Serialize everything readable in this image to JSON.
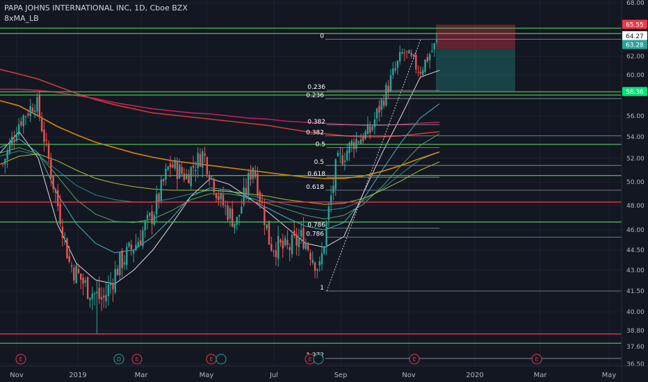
{
  "header": {
    "symbol_line": "PAPA JOHNS INTERNATIONAL INC, 1D, Cboe BZX",
    "indicator_name": "8xMA_LB"
  },
  "colors": {
    "background": "#131722",
    "grid": "#1e222d",
    "text": "#b2b5be",
    "candle_up": "#26a69a",
    "candle_down": "#ef5350",
    "green_line": "#4caf50",
    "red_line": "#f23645",
    "white_line": "#d1d4dc"
  },
  "chart_data": {
    "type": "candlestick",
    "x_axis": {
      "ticks": [
        "Nov",
        "2019",
        "Mar",
        "May",
        "Jul",
        "Sep",
        "Nov",
        "2020",
        "Mar",
        "May"
      ]
    },
    "y_axis": {
      "ylim": [
        36.5,
        68.0
      ],
      "ticks": [
        "68.00",
        "62.00",
        "60.00",
        "56.00",
        "54.00",
        "52.00",
        "50.00",
        "48.00",
        "46.00",
        "44.50",
        "43.00",
        "41.50",
        "40.00",
        "38.80",
        "37.60",
        "36.50"
      ]
    },
    "price_labels": [
      {
        "text": "65.55",
        "value": 65.55,
        "color": "#f23645"
      },
      {
        "text": "64.27",
        "value": 64.27,
        "color": "#ffffff"
      },
      {
        "text": "63.28",
        "value": 63.28,
        "color": "#26a69a"
      },
      {
        "text": "58.36",
        "value": 58.36,
        "color": "#00e676"
      }
    ],
    "horizontal_levels": [
      {
        "value": 65.15,
        "color": "#4caf50"
      },
      {
        "value": 64.55,
        "color": "#4caf50"
      },
      {
        "value": 58.36,
        "color": "#4caf50"
      },
      {
        "value": 58.05,
        "color": "#4caf50"
      },
      {
        "value": 53.3,
        "color": "#4caf50"
      },
      {
        "value": 50.55,
        "color": "#4caf50"
      },
      {
        "value": 48.3,
        "color": "#f23645"
      },
      {
        "value": 46.65,
        "color": "#4caf50"
      },
      {
        "value": 38.55,
        "color": "#f23645"
      },
      {
        "value": 37.85,
        "color": "#4caf50"
      }
    ],
    "fib_sets": [
      {
        "levels": [
          {
            "label": "0",
            "value": 63.9
          },
          {
            "label": "0.236",
            "value": 57.7
          },
          {
            "label": "0.382",
            "value": 54.1
          },
          {
            "label": "0.5",
            "value": 51.4
          },
          {
            "label": "0.618",
            "value": 49.3
          },
          {
            "label": "0.786",
            "value": 45.45
          },
          {
            "label": "1",
            "value": 41.5
          },
          {
            "label": "1.272",
            "value": 36.85
          }
        ]
      },
      {
        "levels": [
          {
            "label": "0.236",
            "value": 58.5
          },
          {
            "label": "0.382",
            "value": 55.15
          },
          {
            "label": "0.5",
            "value": 53.0
          },
          {
            "label": "0.618",
            "value": 50.4
          },
          {
            "label": "0.786",
            "value": 46.15
          }
        ]
      }
    ],
    "position": {
      "entry": 58.36,
      "stop": 65.55,
      "target": 63.28
    },
    "moving_averages": [
      {
        "color": "#ffffff",
        "values": [
          52.5,
          54.5,
          52.0,
          46.5,
          43.5,
          42.3,
          42.0,
          43.0,
          44.5,
          46.5,
          48.8,
          50.3,
          49.8,
          48.7,
          47.5,
          46.2,
          45.0,
          44.7,
          45.5,
          49.0,
          52.5,
          56.0,
          59.8,
          60.5
        ]
      },
      {
        "color": "#4dd0e1",
        "values": [
          53.0,
          53.8,
          52.5,
          49.0,
          46.5,
          45.0,
          44.3,
          44.5,
          45.5,
          47.0,
          48.8,
          49.5,
          49.3,
          48.6,
          47.8,
          47.0,
          46.3,
          46.0,
          46.6,
          48.5,
          51.0,
          53.5,
          55.8,
          57.2
        ]
      },
      {
        "color": "#66bb6a",
        "values": [
          52.5,
          53.0,
          52.4,
          50.5,
          48.5,
          47.3,
          46.7,
          46.6,
          46.9,
          47.6,
          48.5,
          49.0,
          49.0,
          48.7,
          48.2,
          47.7,
          47.2,
          46.9,
          47.2,
          48.1,
          49.6,
          51.4,
          53.2,
          54.3
        ]
      },
      {
        "color": "#26a69a",
        "values": [
          52.2,
          52.7,
          52.3,
          51.0,
          49.7,
          48.9,
          48.5,
          48.3,
          48.3,
          48.6,
          49.0,
          49.3,
          49.2,
          48.9,
          48.5,
          48.1,
          47.8,
          47.6,
          47.8,
          48.4,
          49.4,
          50.7,
          51.9,
          52.6
        ]
      },
      {
        "color": "#cddc39",
        "values": [
          51.5,
          52.2,
          52.4,
          51.8,
          51.0,
          50.3,
          49.9,
          49.6,
          49.4,
          49.3,
          49.3,
          49.3,
          49.2,
          49.0,
          48.8,
          48.5,
          48.3,
          48.1,
          48.2,
          48.6,
          49.3,
          50.1,
          51.0,
          51.7
        ]
      },
      {
        "color": "#ff9800",
        "values": [
          57.5,
          57.0,
          56.0,
          55.0,
          54.2,
          53.5,
          53.0,
          52.5,
          52.1,
          51.8,
          51.6,
          51.4,
          51.2,
          51.0,
          50.8,
          50.6,
          50.4,
          50.3,
          50.3,
          50.5,
          50.9,
          51.4,
          52.0,
          52.6
        ]
      },
      {
        "color": "#f44336",
        "values": [
          60.6,
          60.1,
          59.6,
          58.9,
          58.2,
          57.6,
          57.1,
          56.7,
          56.3,
          56.1,
          55.9,
          55.7,
          55.5,
          55.3,
          55.1,
          54.8,
          54.5,
          54.3,
          54.1,
          54.0,
          54.0,
          54.1,
          54.3,
          54.5
        ]
      },
      {
        "color": "#e91e63",
        "values": [
          58.6,
          58.6,
          58.5,
          58.3,
          58.0,
          57.7,
          57.3,
          57.0,
          56.7,
          56.5,
          56.3,
          56.2,
          56.0,
          55.8,
          55.7,
          55.5,
          55.4,
          55.3,
          55.2,
          55.1,
          55.1,
          55.2,
          55.3,
          55.4
        ]
      }
    ],
    "candles_summary": {
      "anchors": [
        51.5,
        55.5,
        57.5,
        50.0,
        43.5,
        41.8,
        40.8,
        43.5,
        45.0,
        47.3,
        51.5,
        50.5,
        52.5,
        48.5,
        46.5,
        51.5,
        45.0,
        44.5,
        45.5,
        43.0,
        51.5,
        53.5,
        54.5,
        58.5,
        62.5,
        60.5,
        63.5
      ],
      "low_wick_extreme": 38.5,
      "high_extreme": 63.9
    },
    "event_markers": [
      {
        "label": "E",
        "color": "#f23645"
      },
      {
        "label": "D",
        "color": "#26a69a"
      },
      {
        "label": "E",
        "color": "#f23645"
      },
      {
        "label": "E",
        "color": "#f23645"
      },
      {
        "label": "",
        "color": "#26a69a"
      },
      {
        "label": "E",
        "color": "#f23645"
      },
      {
        "label": "",
        "color": "#26a69a"
      },
      {
        "label": "E",
        "color": "#f23645"
      },
      {
        "label": "E",
        "color": "#f23645"
      }
    ]
  }
}
